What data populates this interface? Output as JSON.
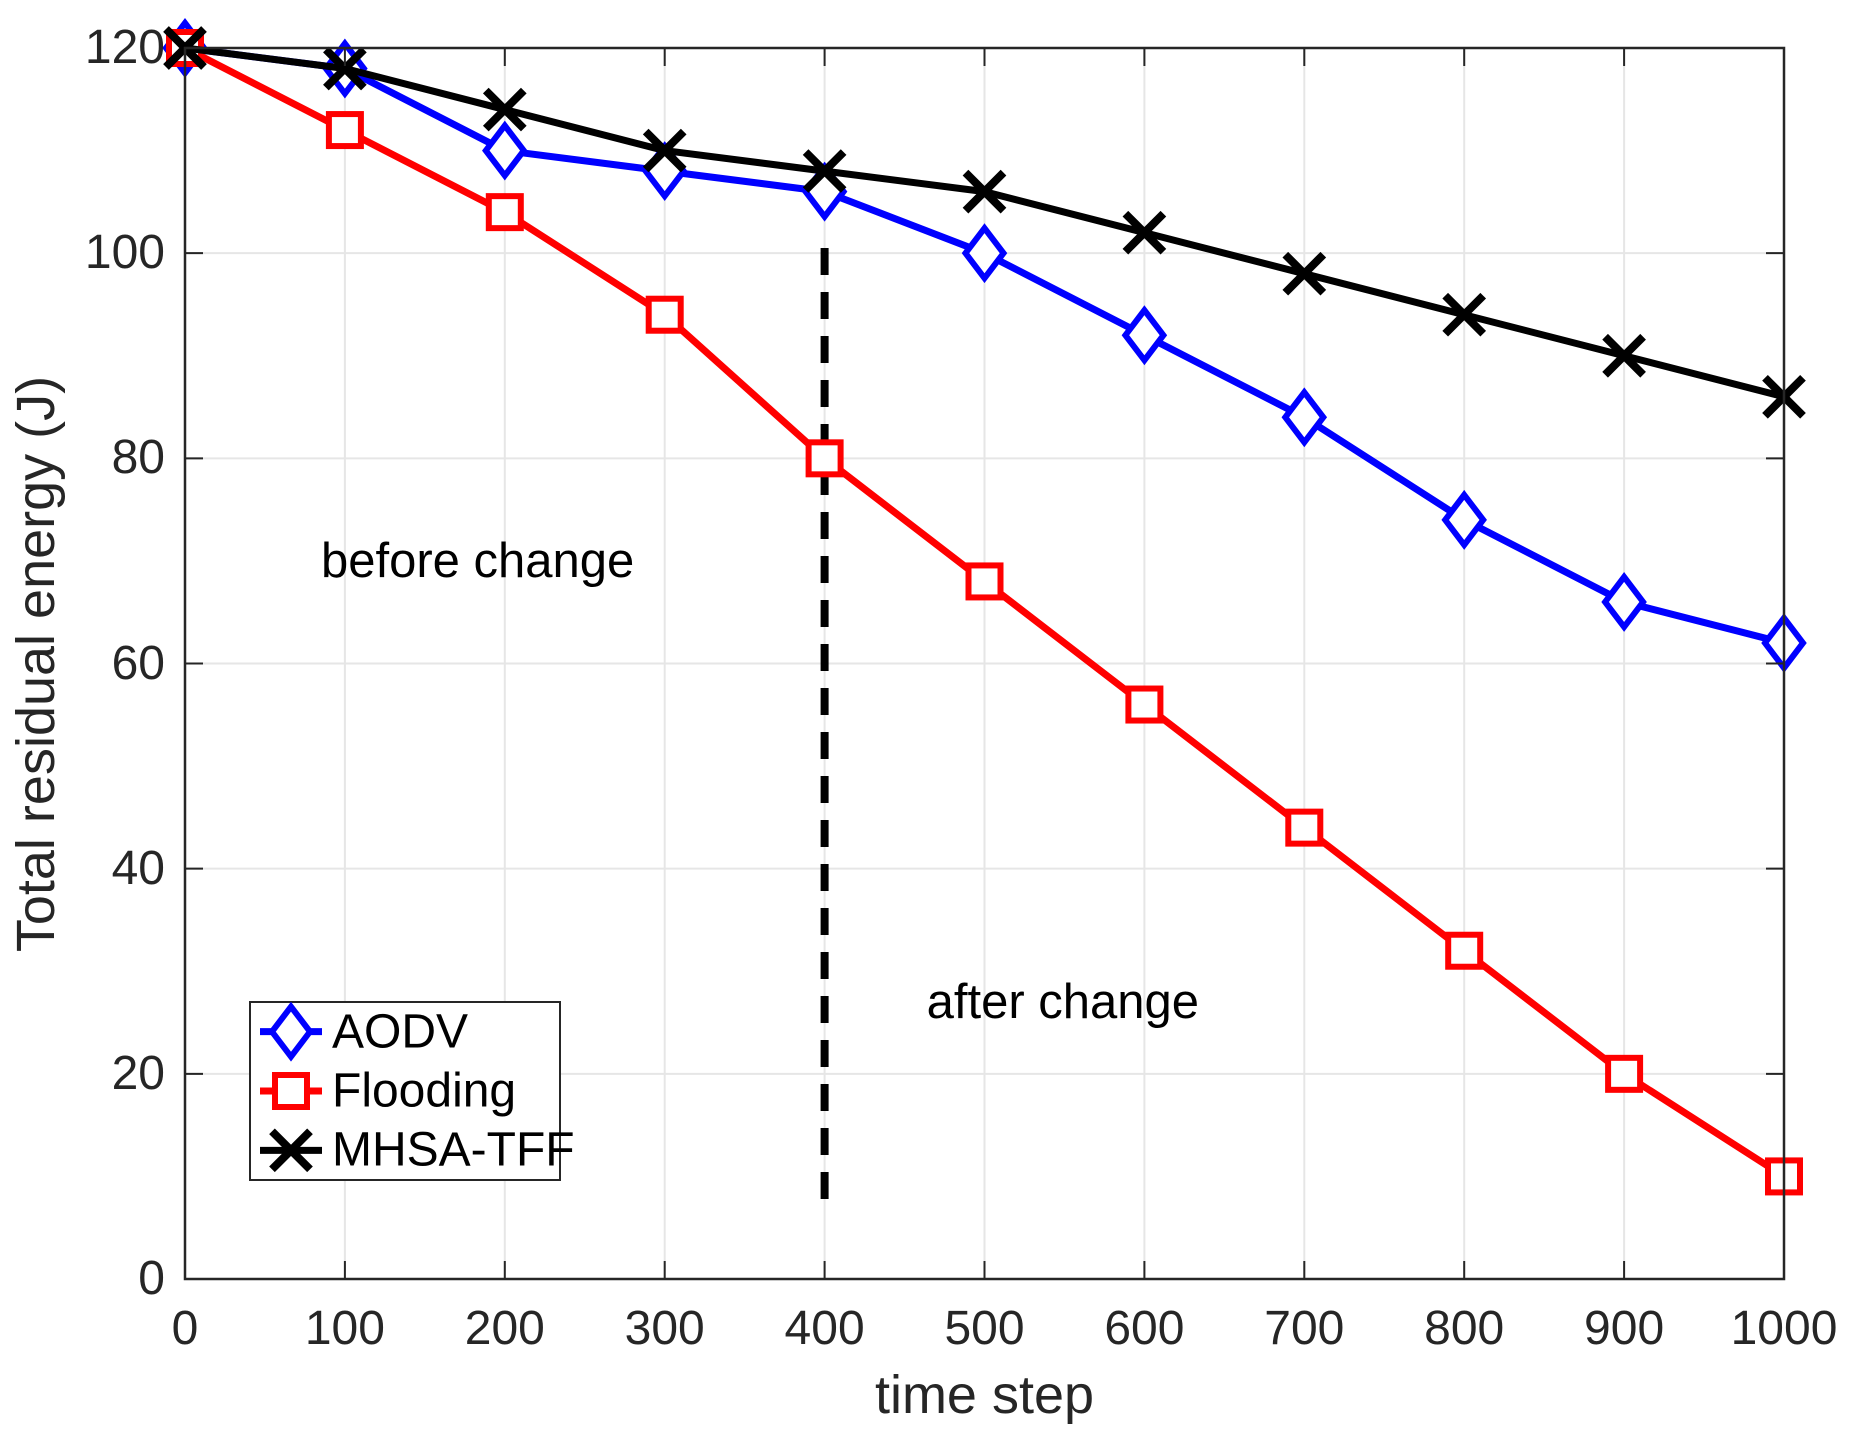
{
  "figure": {
    "background": "#ffffff",
    "text_color": "#262626",
    "grid_color": "#e6e6e6",
    "axis_color": "#262626"
  },
  "chart_data": {
    "type": "line",
    "title": "",
    "xlabel": "time step",
    "ylabel": "Total residual energy (J)",
    "xlim": [
      0,
      1000
    ],
    "ylim": [
      0,
      120
    ],
    "xticks": [
      0,
      100,
      200,
      300,
      400,
      500,
      600,
      700,
      800,
      900,
      1000
    ],
    "yticks": [
      0,
      20,
      40,
      60,
      80,
      100,
      120
    ],
    "grid": true,
    "legend_position": "bottom-left",
    "x": [
      0,
      100,
      200,
      300,
      400,
      500,
      600,
      700,
      800,
      900,
      1000
    ],
    "series": [
      {
        "name": "AODV",
        "color": "#0000ff",
        "marker": "diamond",
        "values": [
          120,
          118,
          110,
          108,
          106,
          100,
          92,
          84,
          74,
          66,
          62
        ]
      },
      {
        "name": "Flooding",
        "color": "#ff0000",
        "marker": "square",
        "values": [
          120,
          112,
          104,
          94,
          80,
          68,
          56,
          44,
          32,
          20,
          10
        ]
      },
      {
        "name": "MHSA-TFF",
        "color": "#000000",
        "marker": "x",
        "values": [
          120,
          118,
          114,
          110,
          108,
          106,
          102,
          98,
          94,
          90,
          86
        ]
      }
    ],
    "annotations": [
      {
        "text": "before change",
        "x": 183,
        "y": 70
      },
      {
        "text": "after change",
        "x": 549,
        "y": 27
      }
    ],
    "vline": {
      "x": 400,
      "y_from": 7.4,
      "y_to": 100.5,
      "style": "dashed",
      "color": "#000000"
    }
  }
}
